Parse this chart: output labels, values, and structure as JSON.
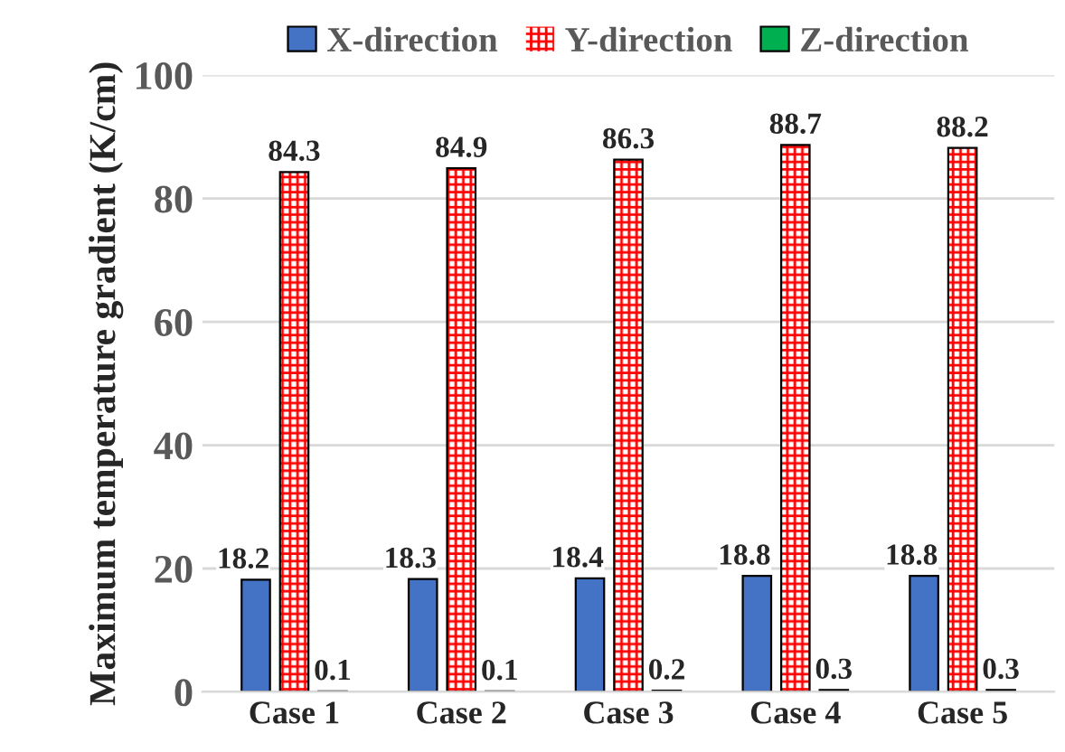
{
  "chart_data": {
    "type": "bar",
    "ylabel": "Maximum temperature gradient (K/cm)",
    "categories": [
      "Case 1",
      "Case 2",
      "Case 3",
      "Case 4",
      "Case 5"
    ],
    "series": [
      {
        "name": "X-direction",
        "color": "#4472c4",
        "values": [
          18.2,
          18.3,
          18.4,
          18.8,
          18.8
        ]
      },
      {
        "name": "Y-direction",
        "color": "#ff0000",
        "values": [
          84.3,
          84.9,
          86.3,
          88.7,
          88.2
        ]
      },
      {
        "name": "Z-direction",
        "color": "#00b050",
        "values": [
          0.1,
          0.1,
          0.2,
          0.3,
          0.3
        ]
      }
    ],
    "ylim": [
      0,
      100
    ],
    "yticks": [
      0,
      20,
      40,
      60,
      80,
      100
    ],
    "grid": "y",
    "legend": "top",
    "data_labels": true
  }
}
